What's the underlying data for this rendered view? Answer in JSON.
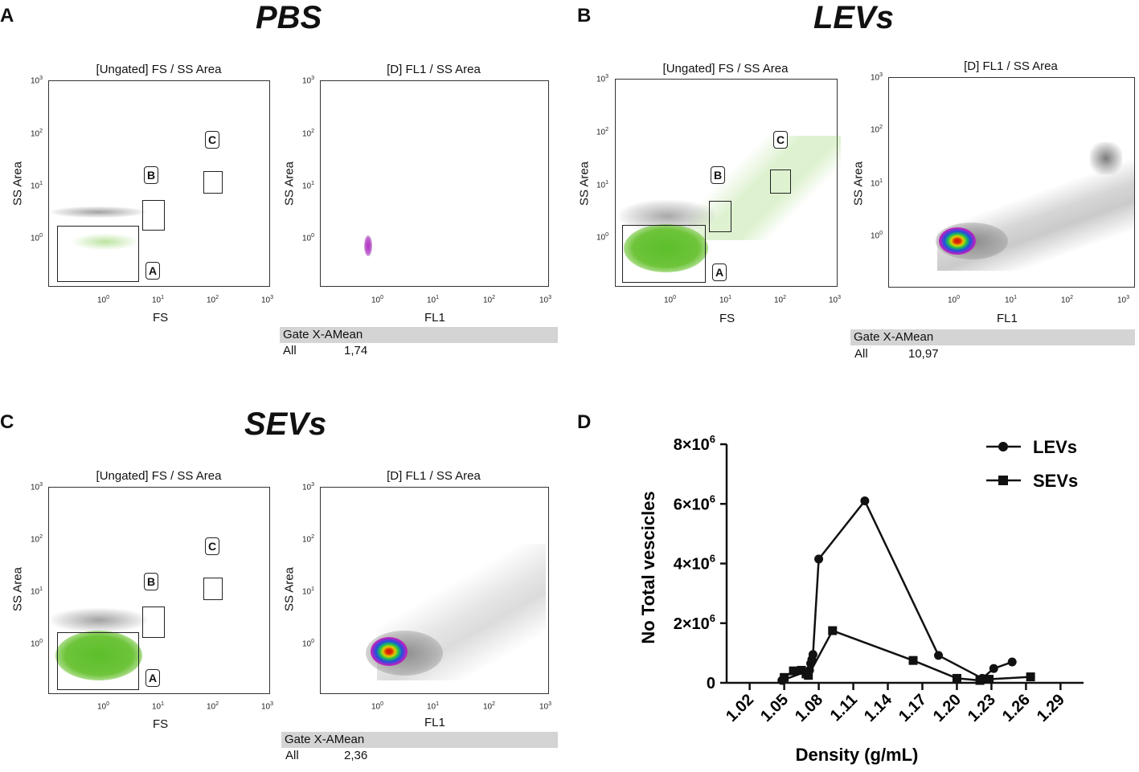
{
  "panels": {
    "A": {
      "letter": "A",
      "title": "PBS",
      "left_plot_title": "[Ungated] FS  /  SS Area",
      "right_plot_title": "[D] FL1  /  SS Area",
      "left_xlabel": "FS",
      "right_xlabel": "FL1",
      "ylabel": "SS Area",
      "stat_header": "Gate X-AMean",
      "stat_gate": "All",
      "stat_value": "1,74"
    },
    "B": {
      "letter": "B",
      "title": "LEVs",
      "left_plot_title": "[Ungated] FS  /  SS Area",
      "right_plot_title": "[D] FL1  /  SS Area",
      "left_xlabel": "FS",
      "right_xlabel": "FL1",
      "ylabel": "SS Area",
      "stat_header": "Gate X-AMean",
      "stat_gate": "All",
      "stat_value": "10,97"
    },
    "C": {
      "letter": "C",
      "title": "SEVs",
      "left_plot_title": "[Ungated] FS  /  SS Area",
      "right_plot_title": "[D] FL1  /  SS Area",
      "left_xlabel": "FS",
      "right_xlabel": "FL1",
      "ylabel": "SS Area",
      "stat_header": "Gate X-AMean",
      "stat_gate": "All",
      "stat_value": "2,36"
    },
    "D": {
      "letter": "D"
    }
  },
  "gate_labels": {
    "a": "A",
    "b": "B",
    "c": "C"
  },
  "log_ticks": {
    "x": [
      "10",
      "10",
      "10",
      "10"
    ],
    "x_exp": [
      "0",
      "1",
      "2",
      "3"
    ],
    "y": [
      "10",
      "10",
      "10",
      "10"
    ],
    "y_exp": [
      "3",
      "2",
      "1",
      "0"
    ]
  },
  "colors": {
    "green": "#7ac943",
    "gray": "#8a8a8a",
    "dark": "#111111"
  },
  "chart_data": {
    "type": "line",
    "xlabel": "Density (g/mL)",
    "ylabel": "No Total vescicles",
    "xlim": [
      1.0,
      1.31
    ],
    "ylim": [
      0,
      8000000
    ],
    "x_ticks": [
      "1.02",
      "1.05",
      "1.08",
      "1.11",
      "1.14",
      "1.17",
      "1.20",
      "1.23",
      "1.26",
      "1.29"
    ],
    "y_ticks": [
      "0",
      "2×10",
      "4×10",
      "6×10",
      "8×10"
    ],
    "y_tick_exp": [
      "",
      "6",
      "6",
      "6",
      "6"
    ],
    "series": [
      {
        "name": "LEVs",
        "marker": "circle",
        "x": [
          1.048,
          1.072,
          1.073,
          1.074,
          1.075,
          1.08,
          1.12,
          1.184,
          1.222,
          1.232,
          1.248
        ],
        "y": [
          80000,
          420000,
          650000,
          780000,
          950000,
          4150000,
          6100000,
          920000,
          150000,
          480000,
          700000
        ]
      },
      {
        "name": "SEVs",
        "marker": "square",
        "x": [
          1.05,
          1.058,
          1.065,
          1.069,
          1.071,
          1.092,
          1.162,
          1.2,
          1.22,
          1.228,
          1.264
        ],
        "y": [
          180000,
          400000,
          420000,
          300000,
          250000,
          1750000,
          750000,
          150000,
          80000,
          120000,
          200000
        ]
      }
    ]
  }
}
